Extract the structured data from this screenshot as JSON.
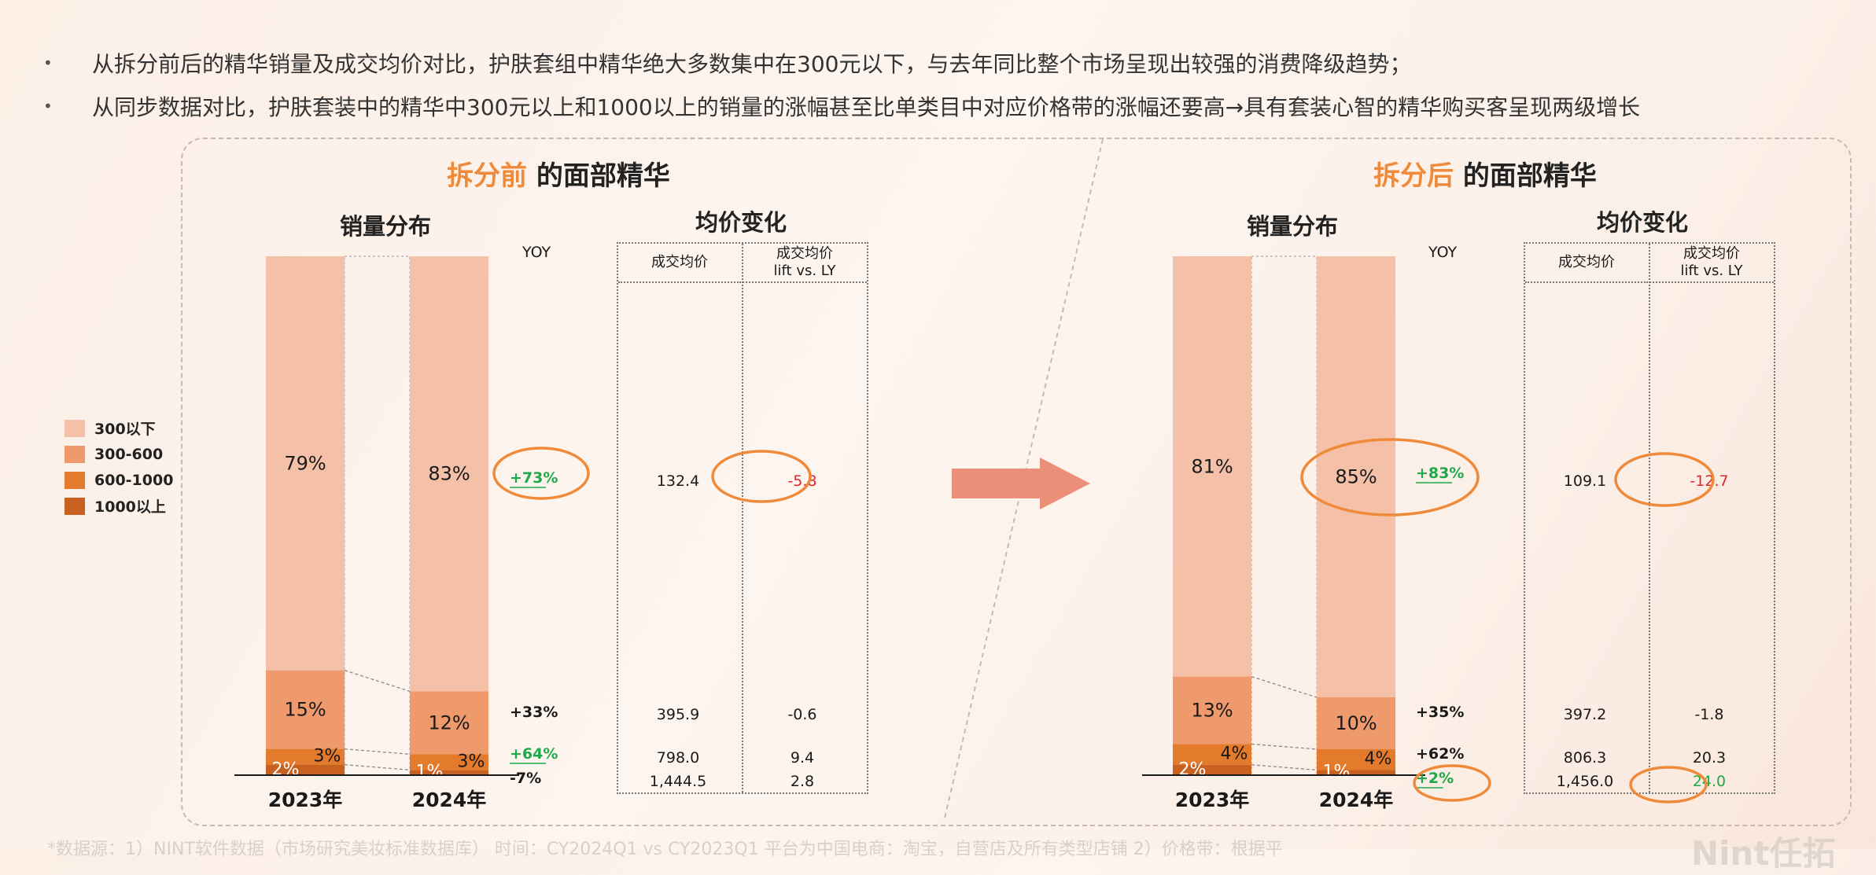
{
  "bullets": [
    "从拆分前后的精华销量及成交均价对比，护肤套组中精华绝大多数集中在300元以下，与去年同比整个市场呈现出较强的消费降级趋势；",
    "从同步数据对比，护肤套装中的精华中300元以上和1000以上的销量的涨幅甚至比单类目中对应价格带的涨幅还要高→具有套装心智的精华购买客呈现两级增长"
  ],
  "legend": [
    "300以下",
    "300-600",
    "600-1000",
    "1000以上"
  ],
  "colors": {
    "seg300": "#f4c0a8",
    "seg300_600": "#ef9a6c",
    "seg600_1000": "#e47a2c",
    "seg1000": "#c8601f",
    "accent": "#ef8a3a",
    "green": "#1faa4a",
    "red": "#e0282c"
  },
  "chart_data": [
    {
      "type": "bar",
      "panel_title_highlight": "拆分前",
      "panel_title_rest": " 的面部精华",
      "dist_title": "销量分布",
      "price_title": "均价变化",
      "yoy_header": "YOY",
      "categories": [
        "2023年",
        "2024年"
      ],
      "series": [
        {
          "name": "300以下",
          "values": [
            79,
            83
          ],
          "labels": [
            "79%",
            "83%"
          ]
        },
        {
          "name": "300-600",
          "values": [
            15,
            12
          ],
          "labels": [
            "15%",
            "12%"
          ]
        },
        {
          "name": "600-1000",
          "values": [
            3,
            3
          ],
          "labels": [
            "3%",
            "3%"
          ]
        },
        {
          "name": "1000以上",
          "values": [
            2,
            1
          ],
          "labels": [
            "2%",
            "1%"
          ]
        }
      ],
      "yoy": [
        "+73%",
        "+33%",
        "+64%",
        "-7%"
      ],
      "price_header": [
        "成交均价",
        "成交均价",
        "lift vs. LY"
      ],
      "price": [
        "132.4",
        "395.9",
        "798.0",
        "1,444.5"
      ],
      "lift": [
        "-5.8",
        "-0.6",
        "9.4",
        "2.8"
      ]
    },
    {
      "type": "bar",
      "panel_title_highlight": "拆分后",
      "panel_title_rest": " 的面部精华",
      "dist_title": "销量分布",
      "price_title": "均价变化",
      "yoy_header": "YOY",
      "categories": [
        "2023年",
        "2024年"
      ],
      "series": [
        {
          "name": "300以下",
          "values": [
            81,
            85
          ],
          "labels": [
            "81%",
            "85%"
          ]
        },
        {
          "name": "300-600",
          "values": [
            13,
            10
          ],
          "labels": [
            "13%",
            "10%"
          ]
        },
        {
          "name": "600-1000",
          "values": [
            4,
            4
          ],
          "labels": [
            "4%",
            "4%"
          ]
        },
        {
          "name": "1000以上",
          "values": [
            2,
            1
          ],
          "labels": [
            "2%",
            "1%"
          ]
        }
      ],
      "yoy": [
        "+83%",
        "+35%",
        "+62%",
        "+2%"
      ],
      "price_header": [
        "成交均价",
        "成交均价",
        "lift vs. LY"
      ],
      "price": [
        "109.1",
        "397.2",
        "806.3",
        "1,456.0"
      ],
      "lift": [
        "-12.7",
        "-1.8",
        "20.3",
        "24.0"
      ]
    }
  ],
  "footer": "*数据源：1）NINT软件数据（市场研究美妆标准数据库）  时间：CY2024Q1 vs CY2023Q1  平台为中国电商：淘宝，自营店及所有类型店铺  2）价格带：根据平",
  "logo": "Nint任拓"
}
